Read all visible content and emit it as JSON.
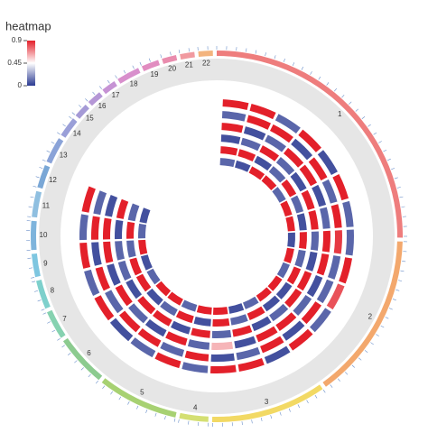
{
  "chart_data": {
    "type": "circos",
    "legend_title": "heatmap",
    "colorbar": {
      "lim": [
        0,
        0.9
      ],
      "ticks": [
        0.9,
        0.45,
        0
      ],
      "colors": [
        "#2b3a92",
        "#ffffff",
        "#e3202a"
      ]
    },
    "chromosomes": [
      {
        "name": "1",
        "size": 100,
        "color": "#ee7d7d"
      },
      {
        "name": "2",
        "size": 58,
        "color": "#f3a86d"
      },
      {
        "name": "3",
        "size": 40,
        "color": "#f2d964"
      },
      {
        "name": "4",
        "size": 10,
        "color": "#d4df72"
      },
      {
        "name": "5",
        "size": 28,
        "color": "#a7d172"
      },
      {
        "name": "6",
        "size": 18,
        "color": "#8ccb8f"
      },
      {
        "name": "7",
        "size": 10,
        "color": "#86d2b0"
      },
      {
        "name": "8",
        "size": 10,
        "color": "#7dd0cc"
      },
      {
        "name": "9",
        "size": 8,
        "color": "#7ec6e0"
      },
      {
        "name": "10",
        "size": 10,
        "color": "#7eb4dc"
      },
      {
        "name": "11",
        "size": 9,
        "color": "#8fbfe0"
      },
      {
        "name": "12",
        "size": 8,
        "color": "#7aa7d6"
      },
      {
        "name": "13",
        "size": 9,
        "color": "#8aa3d8"
      },
      {
        "name": "14",
        "size": 7,
        "color": "#9a9fd8"
      },
      {
        "name": "15",
        "size": 5,
        "color": "#a59ad6"
      },
      {
        "name": "16",
        "size": 5,
        "color": "#b597d6"
      },
      {
        "name": "17",
        "size": 5,
        "color": "#c693d4"
      },
      {
        "name": "18",
        "size": 8,
        "color": "#d88fcc"
      },
      {
        "name": "19",
        "size": 6,
        "color": "#e18cc0"
      },
      {
        "name": "20",
        "size": 5,
        "color": "#e98cae"
      },
      {
        "name": "21",
        "size": 5,
        "color": "#f19aa0"
      },
      {
        "name": "22",
        "size": 5,
        "color": "#f3b47e"
      }
    ],
    "heatmap": [
      [
        0.9,
        0.9,
        0.1,
        0.9,
        0.05,
        0.9,
        0.1,
        0.1,
        0.9,
        0.8,
        0.1,
        0.9,
        0.05,
        0.9,
        0.9,
        0.1,
        0.9,
        0.1,
        0.05,
        0.9,
        0.1,
        0.9,
        0.1,
        0.9
      ],
      [
        0.1,
        0.9,
        0.9,
        0.05,
        0.9,
        0.1,
        0.9,
        0.85,
        0.1,
        0.1,
        0.9,
        0.05,
        0.9,
        0.1,
        0.05,
        0.9,
        0.1,
        0.9,
        0.9,
        0.1,
        0.9,
        0.05,
        0.9,
        0.1
      ],
      [
        0.9,
        0.05,
        0.1,
        0.9,
        0.9,
        0.05,
        0.1,
        0.9,
        0.9,
        0.05,
        0.1,
        0.9,
        0.9,
        0.05,
        0.6,
        0.1,
        0.9,
        0.05,
        0.1,
        0.9,
        0.05,
        0.9,
        0.9,
        0.05
      ],
      [
        0.05,
        0.1,
        0.9,
        0.1,
        0.05,
        0.9,
        0.9,
        0.1,
        0.05,
        0.9,
        0.9,
        0.1,
        0.05,
        0.9,
        0.1,
        0.9,
        0.05,
        0.9,
        0.9,
        0.05,
        0.1,
        0.1,
        0.05,
        0.9
      ],
      [
        0.9,
        0.9,
        0.05,
        0.1,
        0.9,
        0.1,
        0.05,
        0.9,
        0.1,
        0.9,
        0.05,
        0.05,
        0.9,
        0.1,
        0.9,
        0.05,
        0.9,
        0.1,
        0.05,
        0.9,
        0.9,
        0.1,
        0.9,
        0.1
      ],
      [
        0.1,
        0.05,
        0.9,
        0.9,
        0.1,
        0.9,
        0.9,
        0.05,
        0.9,
        0.1,
        0.9,
        0.9,
        0.1,
        0.05,
        0.9,
        0.9,
        0.1,
        0.9,
        0.9,
        0.1,
        0.05,
        0.9,
        0.1,
        0.05
      ]
    ]
  }
}
